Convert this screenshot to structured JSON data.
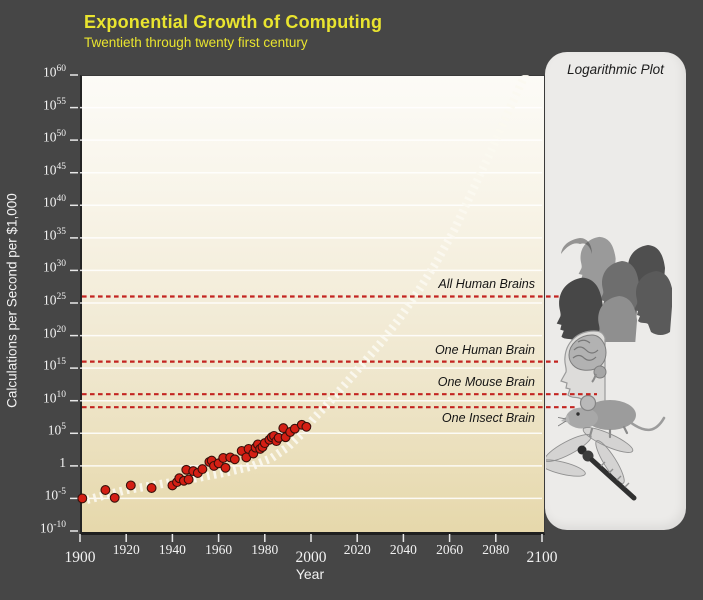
{
  "page": {
    "background": "#464646"
  },
  "header": {
    "title": "Exponential Growth of Computing",
    "subtitle": "Twentieth through twenty first century",
    "title_color": "#e9e42f"
  },
  "side_panel": {
    "label": "Logarithmic Plot",
    "images": [
      "human-heads-collage",
      "human-brain-in-head",
      "mouse",
      "dragonfly"
    ]
  },
  "chart_data": {
    "type": "scatter",
    "title": "Exponential Growth of Computing",
    "xlabel": "Year",
    "ylabel": "Calculations per Second per $1,000",
    "x_range": [
      1900,
      2100
    ],
    "y_range_exponents": [
      -10,
      60
    ],
    "x_ticks": [
      1900,
      1920,
      1940,
      1960,
      1980,
      2000,
      2020,
      2040,
      2060,
      2080,
      2100
    ],
    "x_ticks_major": [
      1900,
      2000,
      2100
    ],
    "y_ticks_exponents": [
      60,
      55,
      50,
      45,
      40,
      35,
      30,
      25,
      20,
      15,
      10,
      5,
      0,
      -5,
      -10
    ],
    "y_tick_zero_label": "1",
    "grid": "horizontal white lines every 5 decades",
    "legend_position": "none",
    "points_unit": "[year, log10(calculations per second per $1,000)]",
    "points": [
      [
        1901,
        -5.0
      ],
      [
        1911,
        -3.7
      ],
      [
        1915,
        -4.9
      ],
      [
        1922,
        -3.0
      ],
      [
        1931,
        -3.4
      ],
      [
        1940,
        -3.0
      ],
      [
        1942,
        -2.5
      ],
      [
        1943,
        -1.9
      ],
      [
        1945,
        -2.3
      ],
      [
        1946,
        -0.6
      ],
      [
        1947,
        -2.1
      ],
      [
        1949,
        -0.8
      ],
      [
        1951,
        -1.1
      ],
      [
        1953,
        -0.5
      ],
      [
        1956,
        0.6
      ],
      [
        1957,
        0.8
      ],
      [
        1958,
        0.0
      ],
      [
        1960,
        0.4
      ],
      [
        1962,
        1.2
      ],
      [
        1963,
        -0.3
      ],
      [
        1965,
        1.3
      ],
      [
        1967,
        1.0
      ],
      [
        1970,
        2.3
      ],
      [
        1972,
        1.3
      ],
      [
        1973,
        2.6
      ],
      [
        1975,
        1.9
      ],
      [
        1976,
        2.8
      ],
      [
        1977,
        3.3
      ],
      [
        1978,
        2.6
      ],
      [
        1979,
        2.9
      ],
      [
        1980,
        3.5
      ],
      [
        1982,
        4.0
      ],
      [
        1983,
        4.4
      ],
      [
        1984,
        4.6
      ],
      [
        1985,
        3.8
      ],
      [
        1986,
        4.3
      ],
      [
        1988,
        5.8
      ],
      [
        1989,
        4.4
      ],
      [
        1991,
        5.2
      ],
      [
        1993,
        5.7
      ],
      [
        1996,
        6.3
      ],
      [
        1998,
        6.0
      ]
    ],
    "trend": [
      [
        1903,
        -5.2
      ],
      [
        1920,
        -3.7
      ],
      [
        1935,
        -2.8
      ],
      [
        1950,
        -1.9
      ],
      [
        1963,
        -1.0
      ],
      [
        1974,
        -0.1
      ],
      [
        1983,
        1.2
      ],
      [
        1990,
        2.9
      ],
      [
        1996,
        4.9
      ],
      [
        2001,
        7.2
      ],
      [
        2008,
        9.8
      ],
      [
        2015,
        12.6
      ],
      [
        2022,
        15.5
      ],
      [
        2030,
        18.8
      ],
      [
        2038,
        22.5
      ],
      [
        2046,
        26.6
      ],
      [
        2054,
        31.1
      ],
      [
        2062,
        36.2
      ],
      [
        2070,
        42.3
      ],
      [
        2078,
        48.4
      ],
      [
        2086,
        54.8
      ],
      [
        2093,
        60.3
      ]
    ],
    "reference_lines": [
      {
        "label": "All Human Brains",
        "exponent": 26,
        "label_position": "above"
      },
      {
        "label": "One Human Brain",
        "exponent": 16,
        "label_position": "above"
      },
      {
        "label": "One Mouse Brain",
        "exponent": 11,
        "label_position": "above"
      },
      {
        "label": "One Insect Brain",
        "exponent": 9,
        "label_position": "below"
      }
    ],
    "colors": {
      "background": "#464646",
      "plot_top": "#fcfbf7",
      "plot_bottom": "#e6d8ab",
      "gridline": "#ffffff",
      "trend_band": "#fbf9f0",
      "data_point": "#d41f14",
      "reference_line": "#c32420",
      "axis_text": "#f2f2f2",
      "title_yellow": "#e9e42f"
    }
  }
}
